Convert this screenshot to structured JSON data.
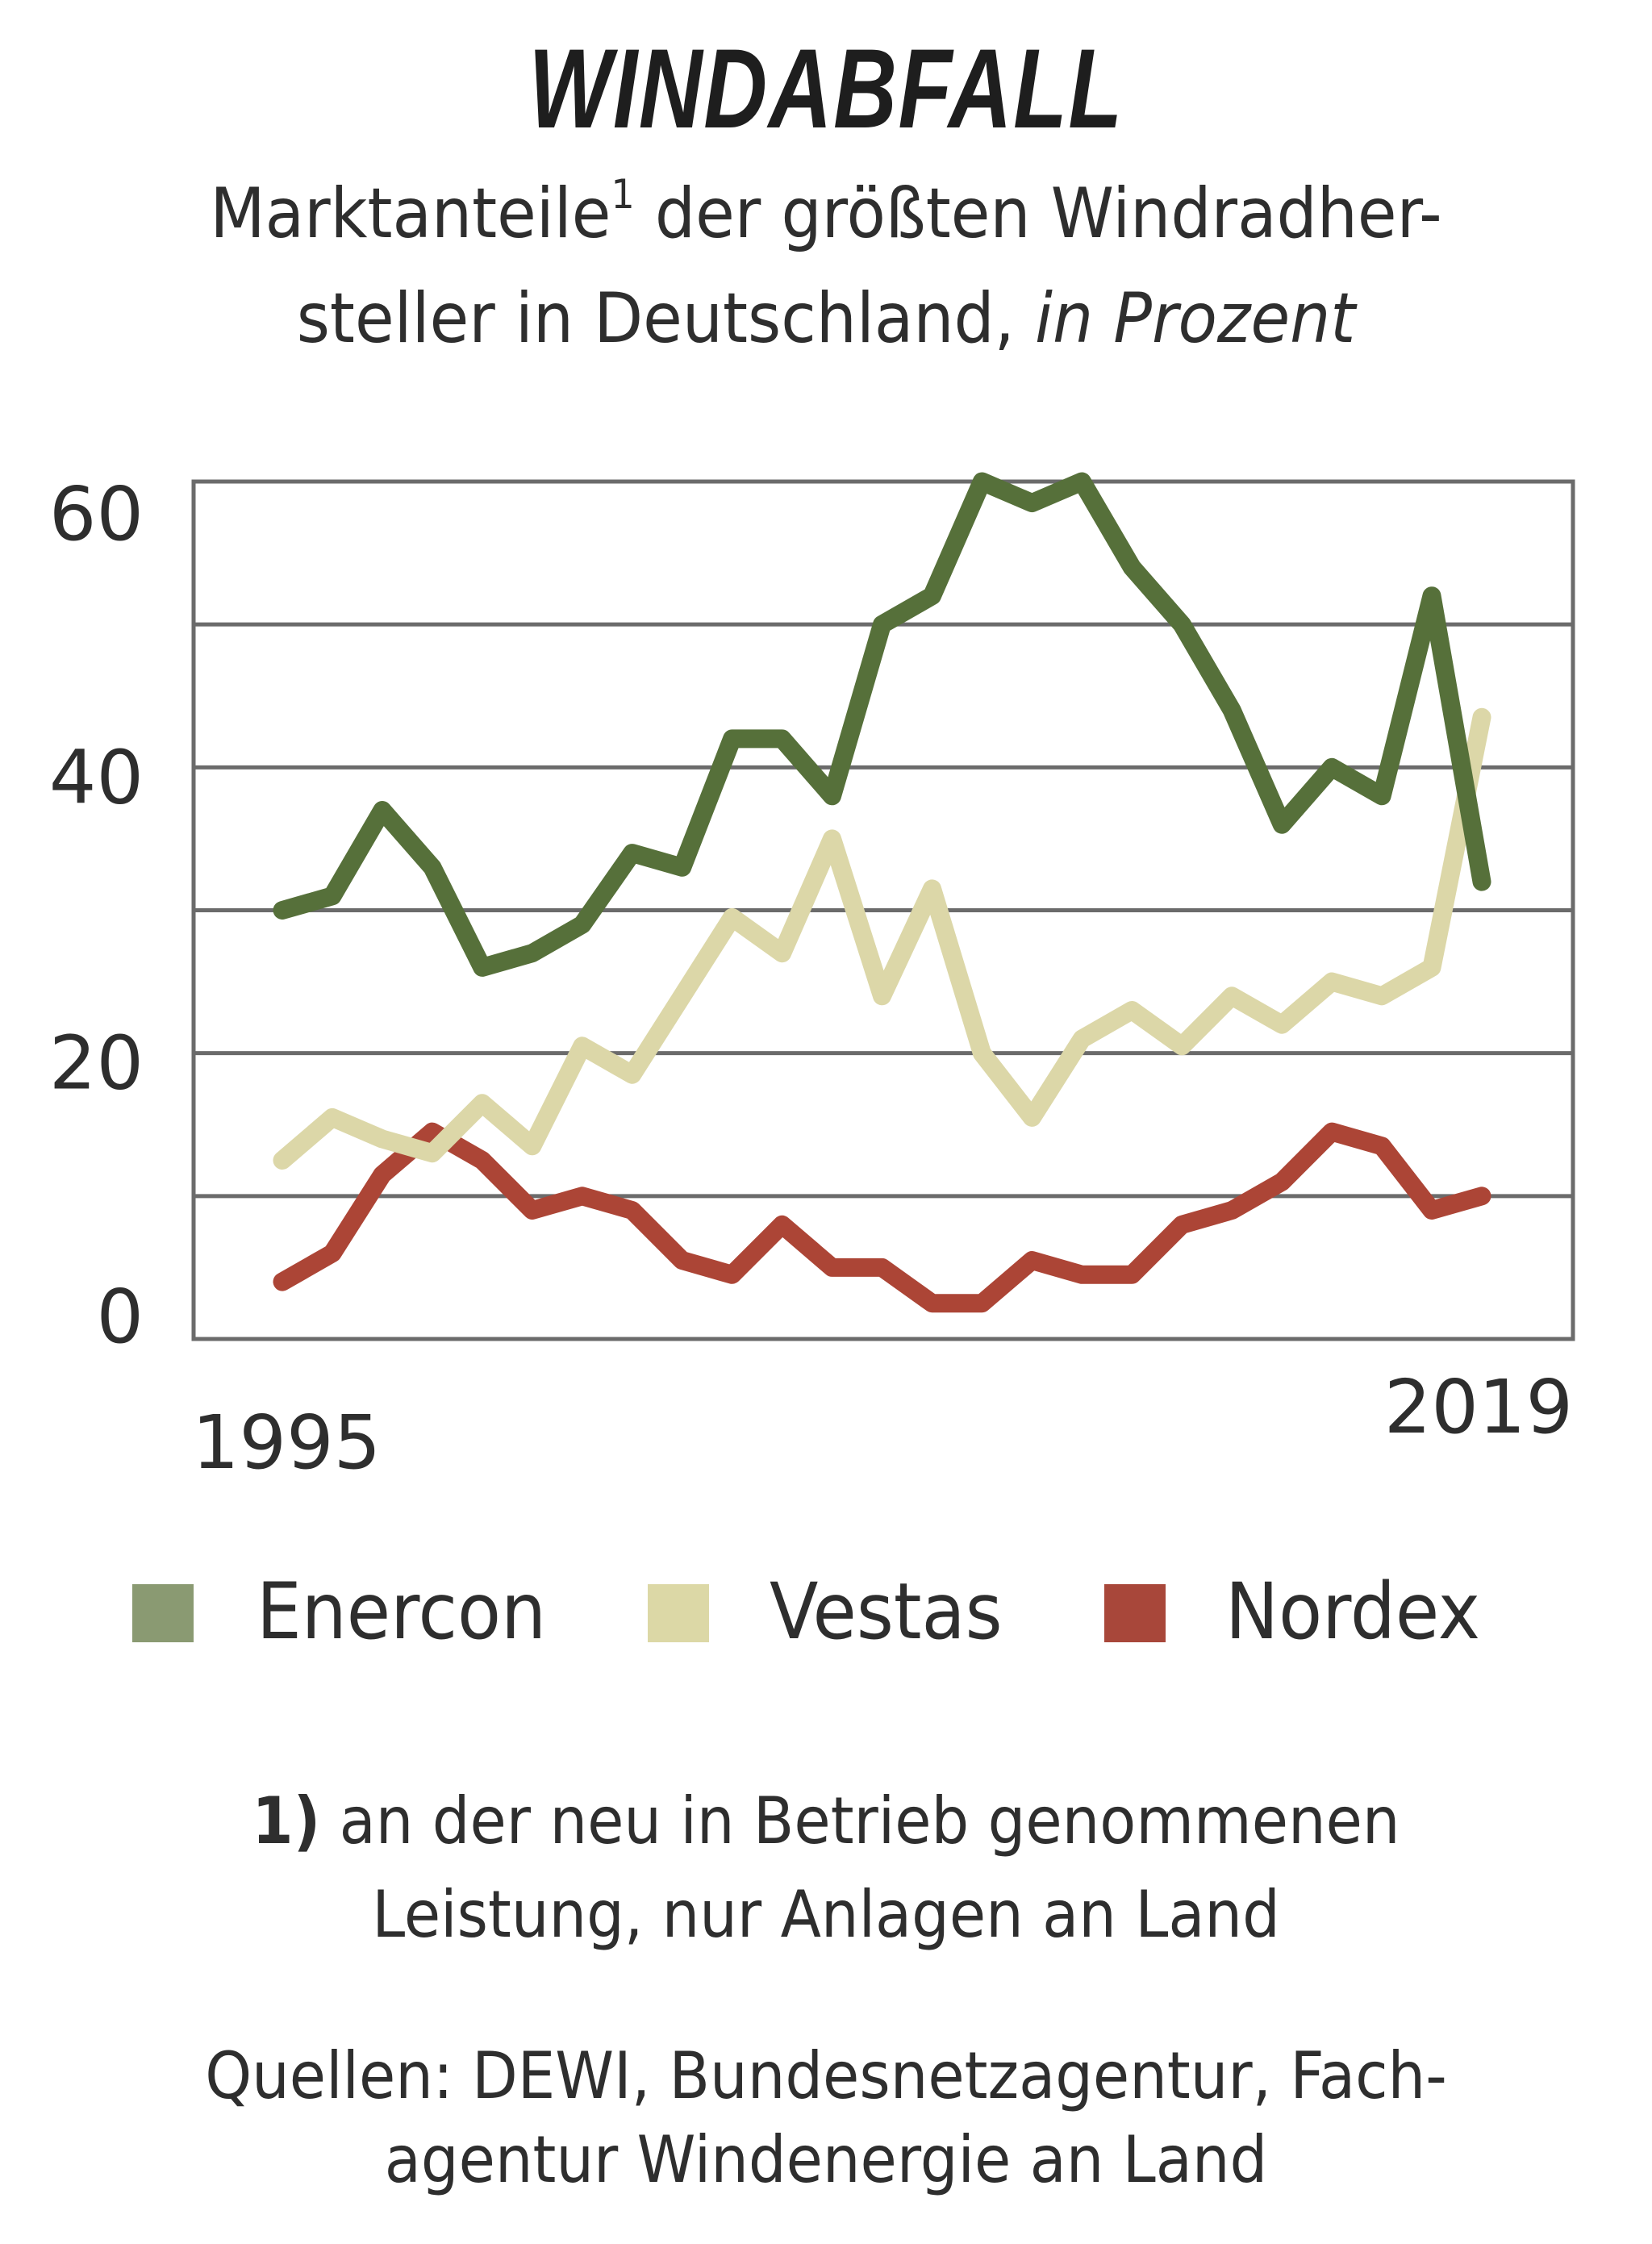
{
  "header": {
    "title": "WINDABFALL",
    "subtitle_line1_pre": "Marktanteile",
    "subtitle_footnote_mark": "1",
    "subtitle_line1_post": " der größten Windradher-",
    "subtitle_line2_pre": "steller in Deutschland, ",
    "subtitle_line2_italic": "in Prozent"
  },
  "legend": [
    {
      "label": "Enercon",
      "color": "#8a9a72"
    },
    {
      "label": "Vestas",
      "color": "#dcd8a6"
    },
    {
      "label": "Nordex",
      "color": "#a8473a"
    }
  ],
  "footnote": {
    "mark": "1)",
    "line1": " an der neu in Betrieb genommenen",
    "line2": "Leistung, nur Anlagen an Land"
  },
  "sources": {
    "line1": "Quellen: DEWI, Bundesnetzagentur, Fach-",
    "line2": "agentur Windenergie an Land"
  },
  "chart_data": {
    "type": "line",
    "title": "WINDABFALL",
    "subtitle": "Marktanteile¹ der größten Windradhersteller in Deutschland, in Prozent",
    "xlabel": "",
    "ylabel": "",
    "x": [
      1995,
      1996,
      1997,
      1998,
      1999,
      2000,
      2001,
      2002,
      2003,
      2004,
      2005,
      2006,
      2007,
      2008,
      2009,
      2010,
      2011,
      2012,
      2013,
      2014,
      2015,
      2016,
      2017,
      2018,
      2019
    ],
    "x_tick_labels": [
      "1995",
      "2019"
    ],
    "y_ticks": [
      0,
      20,
      40,
      60
    ],
    "y_tick_labels": [
      "0",
      "20",
      "40",
      "60"
    ],
    "ylim": [
      0,
      60
    ],
    "gridlines": [
      0,
      10,
      20,
      30,
      40,
      50,
      60
    ],
    "grid": true,
    "legend_position": "bottom",
    "series": [
      {
        "name": "Enercon",
        "color": "#56703a",
        "values": [
          30,
          31,
          37,
          33,
          26,
          27,
          29,
          34,
          33,
          42,
          42,
          38,
          50,
          52,
          60,
          58.5,
          60,
          54,
          50,
          44,
          36,
          40,
          38,
          52,
          32
        ]
      },
      {
        "name": "Vestas",
        "color": "#dcd7a8",
        "values": [
          12.5,
          15.5,
          14,
          13,
          16.5,
          13.5,
          20.5,
          18.5,
          24,
          29.5,
          27,
          35,
          24,
          31.5,
          20,
          15.5,
          21,
          23,
          20.5,
          24,
          22,
          25,
          24,
          26,
          43.5
        ]
      },
      {
        "name": "Nordex",
        "color": "#ac4536",
        "values": [
          4,
          6,
          11.5,
          14.5,
          12.5,
          9,
          10,
          9,
          5.5,
          4.5,
          8,
          5,
          5,
          2.5,
          2.5,
          5.5,
          4.5,
          4.5,
          8,
          9,
          11,
          14.5,
          13.5,
          9,
          10
        ]
      }
    ]
  }
}
